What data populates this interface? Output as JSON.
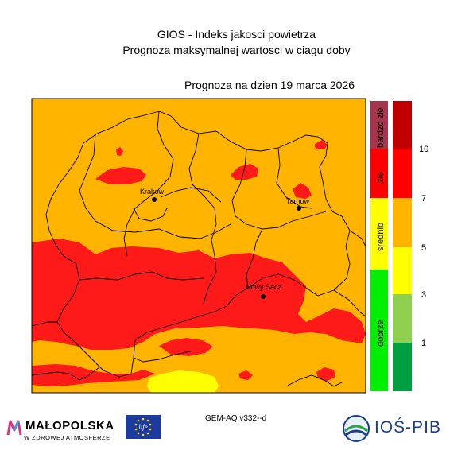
{
  "header": {
    "title_line1": "GIOS - Indeks jakosci powietrza",
    "title_line2": "Prognoza maksymalnej wartosci w ciagu doby",
    "forecast_date": "Prognoza na dzien  19 marca 2026"
  },
  "map": {
    "cities": [
      {
        "name": "Krakow"
      },
      {
        "name": "Tarnow"
      },
      {
        "name": "Nowy Sacz"
      }
    ],
    "colors": {
      "background": "#ffb400",
      "high": "#ff1a1a",
      "very_high": "#b00000",
      "low": "#ffff00",
      "border": "#000000"
    }
  },
  "legend": {
    "categories": [
      {
        "label": "bardzo złe",
        "color": "#a6344c"
      },
      {
        "label": "złe",
        "color": "#ff0000"
      },
      {
        "label": "srednio",
        "color": "#ffff00"
      },
      {
        "label": "dobrze",
        "color": "#00ee00"
      }
    ],
    "scale": [
      {
        "color": "#c00000"
      },
      {
        "color": "#ff0000"
      },
      {
        "color": "#ffb400"
      },
      {
        "color": "#ffff00"
      },
      {
        "color": "#90d050"
      },
      {
        "color": "#00a040"
      }
    ],
    "tick_labels": [
      "10",
      "7",
      "5",
      "3",
      "1"
    ]
  },
  "footer": {
    "model_label": "GEM-AQ v332--d",
    "malopolska_name": "MAŁOPOLSKA",
    "malopolska_sub": "W ZDROWEJ ATMOSFERZE",
    "eu_life_text": "life",
    "ios_name": "IOŚ-PIB"
  }
}
